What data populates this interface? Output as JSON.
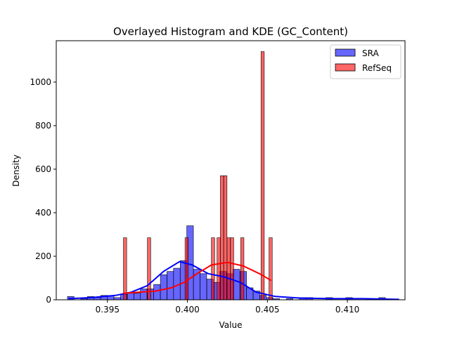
{
  "chart_data": {
    "type": "histogram",
    "title": "Overlayed Histogram and KDE (GC_Content)",
    "xlabel": "Value",
    "ylabel": "Density",
    "xlim": [
      0.3918,
      0.4136
    ],
    "ylim": [
      0,
      1190
    ],
    "xticks": [
      0.395,
      0.4,
      0.405,
      0.41
    ],
    "xtick_labels": [
      "0.395",
      "0.400",
      "0.405",
      "0.410"
    ],
    "yticks": [
      0,
      200,
      400,
      600,
      800,
      1000
    ],
    "ytick_labels": [
      "0",
      "200",
      "400",
      "600",
      "800",
      "1000"
    ],
    "grid": false,
    "legend_position": "top-right",
    "series": [
      {
        "name": "SRA",
        "color": "#0000ff",
        "bin_width": 0.000413,
        "bins": [
          [
            0.3925,
            15
          ],
          [
            0.39333,
            5
          ],
          [
            0.39375,
            15
          ],
          [
            0.39416,
            10
          ],
          [
            0.39458,
            20
          ],
          [
            0.39499,
            20
          ],
          [
            0.39541,
            10
          ],
          [
            0.39582,
            25
          ],
          [
            0.39624,
            30
          ],
          [
            0.39665,
            30
          ],
          [
            0.39706,
            50
          ],
          [
            0.39748,
            50
          ],
          [
            0.39789,
            70
          ],
          [
            0.39831,
            115
          ],
          [
            0.39872,
            130
          ],
          [
            0.39913,
            145
          ],
          [
            0.39955,
            180
          ],
          [
            0.39996,
            340
          ],
          [
            0.40038,
            140
          ],
          [
            0.40079,
            120
          ],
          [
            0.40121,
            95
          ],
          [
            0.40162,
            80
          ],
          [
            0.40203,
            130
          ],
          [
            0.40245,
            120
          ],
          [
            0.40286,
            140
          ],
          [
            0.40328,
            130
          ],
          [
            0.40369,
            55
          ],
          [
            0.40411,
            40
          ],
          [
            0.40452,
            20
          ],
          [
            0.40493,
            10
          ],
          [
            0.40535,
            5
          ],
          [
            0.40618,
            5
          ],
          [
            0.407,
            10
          ],
          [
            0.40742,
            10
          ],
          [
            0.40866,
            10
          ],
          [
            0.4099,
            10
          ],
          [
            0.41196,
            10
          ]
        ],
        "kde": [
          [
            0.3926,
            5
          ],
          [
            0.394,
            10
          ],
          [
            0.3955,
            20
          ],
          [
            0.3965,
            35
          ],
          [
            0.3975,
            65
          ],
          [
            0.3985,
            130
          ],
          [
            0.3995,
            175
          ],
          [
            0.4003,
            160
          ],
          [
            0.4013,
            120
          ],
          [
            0.4023,
            105
          ],
          [
            0.4033,
            80
          ],
          [
            0.4043,
            35
          ],
          [
            0.4055,
            15
          ],
          [
            0.407,
            8
          ],
          [
            0.409,
            5
          ],
          [
            0.411,
            5
          ],
          [
            0.4132,
            2
          ]
        ]
      },
      {
        "name": "RefSeq",
        "color": "#ff0000",
        "bin_width": 0.000202,
        "bins": [
          [
            0.396,
            285
          ],
          [
            0.3975,
            285
          ],
          [
            0.39985,
            285
          ],
          [
            0.4015,
            285
          ],
          [
            0.40185,
            285
          ],
          [
            0.40206,
            570
          ],
          [
            0.40227,
            570
          ],
          [
            0.40248,
            285
          ],
          [
            0.40269,
            285
          ],
          [
            0.40333,
            285
          ],
          [
            0.4046,
            1140
          ],
          [
            0.4051,
            285
          ]
        ],
        "kde": [
          [
            0.396,
            30
          ],
          [
            0.397,
            35
          ],
          [
            0.398,
            40
          ],
          [
            0.399,
            55
          ],
          [
            0.3998,
            80
          ],
          [
            0.4006,
            120
          ],
          [
            0.4015,
            160
          ],
          [
            0.4025,
            172
          ],
          [
            0.4035,
            155
          ],
          [
            0.4045,
            120
          ],
          [
            0.4052,
            90
          ]
        ]
      }
    ]
  }
}
